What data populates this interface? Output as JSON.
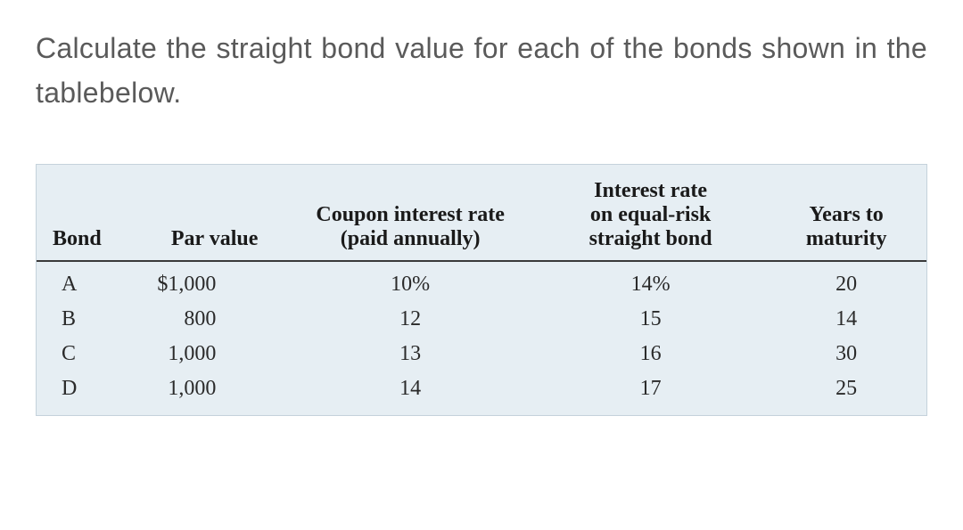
{
  "question_text": "Calculate the straight bond value for each of the bonds shown in the tablebelow.",
  "table": {
    "background_color": "#e6eef3",
    "border_color": "#c5d2db",
    "header_rule_color": "#3a3a3a",
    "text_color": "#2a2a2a",
    "header_fontsize": 24,
    "cell_fontsize": 24,
    "font_family": "Times New Roman",
    "columns": [
      {
        "label": "Bond",
        "width_pct": 12,
        "align": "left"
      },
      {
        "label": "Par value",
        "width_pct": 16,
        "align": "right"
      },
      {
        "label": "Coupon interest rate\n(paid annually)",
        "width_pct": 28,
        "align": "center"
      },
      {
        "label": "Interest rate\non equal-risk\nstraight bond",
        "width_pct": 26,
        "align": "center"
      },
      {
        "label": "Years to\nmaturity",
        "width_pct": 18,
        "align": "center"
      }
    ],
    "header": {
      "bond": "Bond",
      "par": "Par value",
      "coupon_l1": "Coupon interest rate",
      "coupon_l2": "(paid annually)",
      "interest_l1": "Interest rate",
      "interest_l2": "on equal-risk",
      "interest_l3": "straight bond",
      "years_l1": "Years to",
      "years_l2": "maturity"
    },
    "rows": [
      {
        "bond": "A",
        "par": "$1,000",
        "coupon": "10%",
        "interest": "14%",
        "years": "20"
      },
      {
        "bond": "B",
        "par": "800",
        "coupon": "12",
        "interest": "15",
        "years": "14"
      },
      {
        "bond": "C",
        "par": "1,000",
        "coupon": "13",
        "interest": "16",
        "years": "30"
      },
      {
        "bond": "D",
        "par": "1,000",
        "coupon": "14",
        "interest": "17",
        "years": "25"
      }
    ]
  },
  "page": {
    "background": "#ffffff",
    "question_color": "#5a5a5a",
    "question_fontsize": 32
  }
}
